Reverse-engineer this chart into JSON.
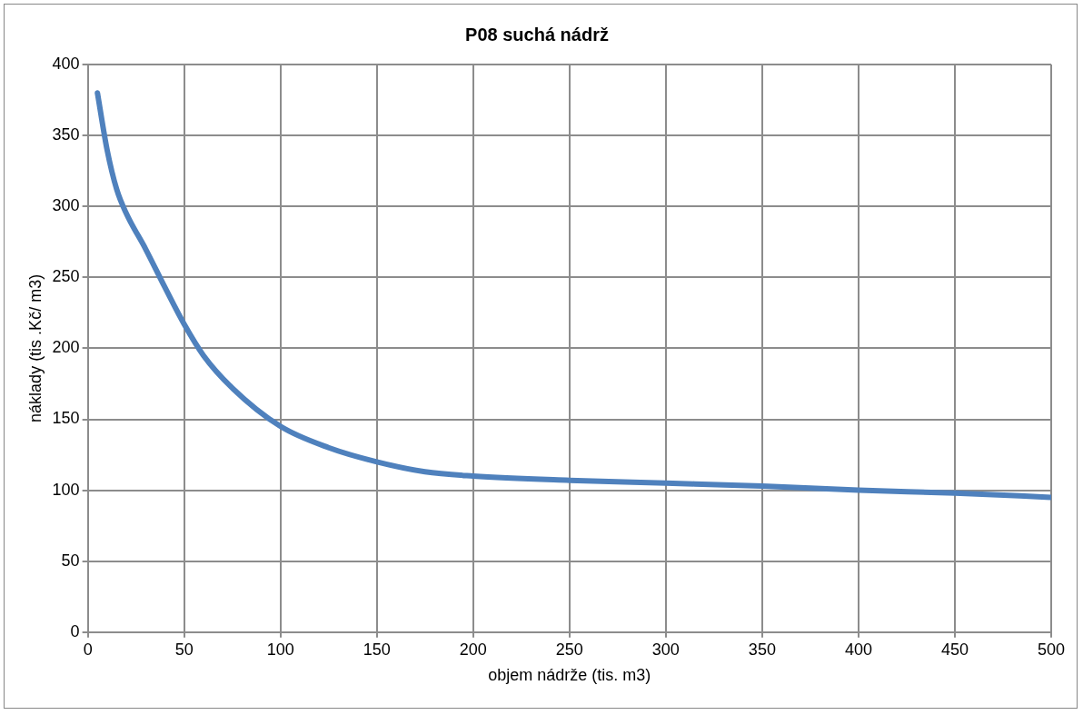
{
  "chart_data": {
    "type": "line",
    "title": "P08 suchá nádrž",
    "xlabel": "objem nádrže (tis. m3)",
    "ylabel": "náklady (tis .Kč/ m3)",
    "x": [
      5,
      10,
      15,
      20,
      30,
      40,
      50,
      60,
      75,
      100,
      125,
      150,
      175,
      200,
      250,
      300,
      350,
      400,
      450,
      500
    ],
    "series": [
      {
        "color": "#4f81bd",
        "values": [
          380,
          340,
          312,
          295,
          270,
          243,
          217,
          195,
          172,
          145,
          130,
          120,
          113,
          110,
          107,
          105,
          103,
          100,
          98,
          95
        ]
      }
    ],
    "xlim": [
      0,
      500
    ],
    "xticks": [
      0,
      50,
      100,
      150,
      200,
      250,
      300,
      350,
      400,
      450,
      500
    ],
    "ylim": [
      0,
      400
    ],
    "yticks": [
      0,
      50,
      100,
      150,
      200,
      250,
      300,
      350,
      400
    ],
    "grid": true,
    "legend": false,
    "marker": "none",
    "line_style": "solid"
  }
}
